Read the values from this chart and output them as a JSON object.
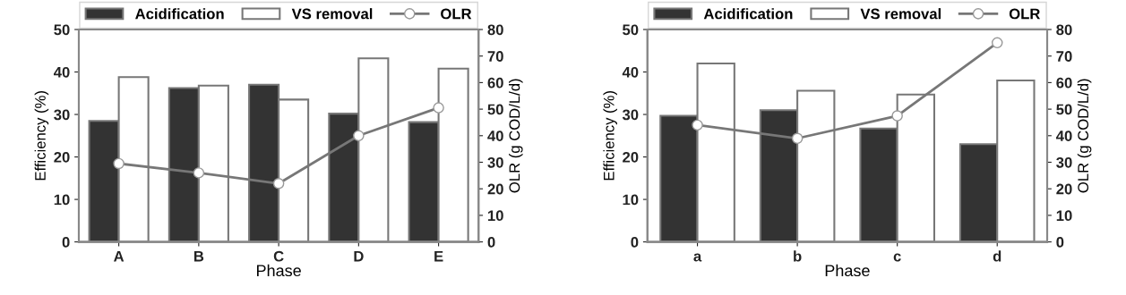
{
  "chart_data": [
    {
      "type": "bar",
      "categories": [
        "A",
        "B",
        "C",
        "D",
        "E"
      ],
      "xlabel": "Phase",
      "ylabel": "Efficiency (%)",
      "y2label": "OLR (g COD/L/d)",
      "ylim": [
        0,
        50
      ],
      "yticks": [
        0,
        10,
        20,
        30,
        40,
        50
      ],
      "y2lim": [
        0,
        80
      ],
      "y2ticks": [
        0,
        10,
        20,
        30,
        40,
        50,
        60,
        70,
        80
      ],
      "legend": "top",
      "grid": false,
      "series": [
        {
          "name": "Acidification",
          "color": "#333333",
          "values": [
            28.5,
            36.2,
            37,
            30.2,
            28.2
          ]
        },
        {
          "name": "VS removal",
          "color": "#ffffff",
          "values": [
            38.8,
            36.8,
            33.5,
            43.2,
            40.8
          ]
        },
        {
          "name": "OLR",
          "type": "line",
          "axis": "y2",
          "color": "#777777",
          "marker": "circle",
          "values": [
            29.5,
            26,
            22,
            40,
            50.5
          ]
        }
      ]
    },
    {
      "type": "bar",
      "categories": [
        "a",
        "b",
        "c",
        "d"
      ],
      "xlabel": "Phase",
      "ylabel": "Efficiency (%)",
      "y2label": "OLR (g COD/L/d)",
      "ylim": [
        0,
        50
      ],
      "yticks": [
        0,
        10,
        20,
        30,
        40,
        50
      ],
      "y2lim": [
        0,
        80
      ],
      "y2ticks": [
        0,
        10,
        20,
        30,
        40,
        50,
        60,
        70,
        80
      ],
      "legend": "top",
      "grid": false,
      "series": [
        {
          "name": "Acidification",
          "color": "#333333",
          "values": [
            29.7,
            31,
            26.7,
            23
          ]
        },
        {
          "name": "VS removal",
          "color": "#ffffff",
          "values": [
            42,
            35.6,
            34.7,
            38
          ]
        },
        {
          "name": "OLR",
          "type": "line",
          "axis": "y2",
          "color": "#777777",
          "marker": "circle",
          "values": [
            44,
            39,
            47.5,
            75
          ]
        }
      ]
    }
  ]
}
